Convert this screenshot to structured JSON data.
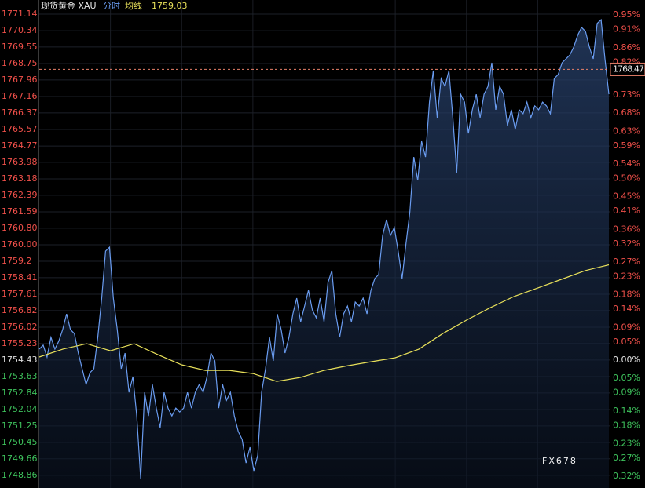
{
  "chart_data": {
    "type": "line",
    "title": "现货黄金 XAU",
    "avg_value": 1759.03,
    "last_price": 1768.47,
    "watermark": "FX678",
    "ylim": [
      1748.44,
      1771.48
    ],
    "y2lim": [
      -0.3414,
      0.9718
    ],
    "grid": true,
    "yticks": [
      1771.14,
      1770.34,
      1769.55,
      1768.75,
      1767.96,
      1767.16,
      1766.37,
      1765.57,
      1764.77,
      1763.98,
      1763.18,
      1762.39,
      1761.59,
      {
        "value": 1760.8,
        "label": "1760.80"
      },
      {
        "value": 1760,
        "label": "1760.00"
      },
      1759.2,
      1758.41,
      1757.61,
      1756.82,
      1756.02,
      1755.23,
      1754.43,
      1753.63,
      1752.84,
      1752.04,
      1751.25,
      1750.45,
      1749.66,
      1748.86
    ],
    "y2ticks": [
      {
        "value": 0.95,
        "label": "0.95%"
      },
      {
        "value": 0.91,
        "label": "0.91%"
      },
      {
        "value": 0.86,
        "label": "0.86%"
      },
      {
        "value": 0.82,
        "label": "0.82%"
      },
      {
        "value": 0.73,
        "label": "0.73%"
      },
      {
        "value": 0.68,
        "label": "0.68%"
      },
      {
        "value": 0.63,
        "label": "0.63%"
      },
      {
        "value": 0.59,
        "label": "0.59%"
      },
      {
        "value": 0.54,
        "label": "0.54%"
      },
      {
        "value": 0.5,
        "label": "0.50%"
      },
      {
        "value": 0.45,
        "label": "0.45%"
      },
      {
        "value": 0.41,
        "label": "0.41%"
      },
      {
        "value": 0.36,
        "label": "0.36%"
      },
      {
        "value": 0.32,
        "label": "0.32%"
      },
      {
        "value": 0.27,
        "label": "0.27%"
      },
      {
        "value": 0.23,
        "label": "0.23%"
      },
      {
        "value": 0.18,
        "label": "0.18%"
      },
      {
        "value": 0.14,
        "label": "0.14%"
      },
      {
        "value": 0.09,
        "label": "0.09%"
      },
      {
        "value": 0.05,
        "label": "0.05%"
      },
      {
        "value": 0,
        "label": "0.00%"
      },
      {
        "value": -0.05,
        "label": "0.05%"
      },
      {
        "value": -0.09,
        "label": "0.09%"
      },
      {
        "value": -0.14,
        "label": "0.14%"
      },
      {
        "value": -0.18,
        "label": "0.18%"
      },
      {
        "value": -0.23,
        "label": "0.23%"
      },
      {
        "value": -0.27,
        "label": "0.27%"
      },
      {
        "value": -0.32,
        "label": "0.32%"
      }
    ],
    "series": [
      {
        "name": "分时",
        "color": "#6a9cf0",
        "values": [
          1754.96,
          1755.15,
          1754.58,
          1755.53,
          1754.96,
          1755.34,
          1755.9,
          1756.66,
          1755.9,
          1755.71,
          1754.77,
          1754.01,
          1753.25,
          1753.82,
          1754.01,
          1755.53,
          1757.42,
          1759.69,
          1759.88,
          1757.42,
          1755.9,
          1754.01,
          1754.77,
          1752.87,
          1753.63,
          1751.73,
          1748.7,
          1752.87,
          1751.73,
          1753.25,
          1752.11,
          1751.17,
          1752.87,
          1752.11,
          1751.73,
          1752.11,
          1751.92,
          1752.11,
          1752.87,
          1752.11,
          1752.87,
          1753.25,
          1752.87,
          1753.63,
          1754.77,
          1754.39,
          1752.11,
          1753.25,
          1752.49,
          1752.87,
          1751.73,
          1750.98,
          1750.6,
          1749.46,
          1750.22,
          1749.08,
          1749.84,
          1752.87,
          1754.01,
          1755.53,
          1754.39,
          1756.66,
          1755.9,
          1754.77,
          1755.53,
          1756.66,
          1757.42,
          1756.28,
          1757.04,
          1757.8,
          1756.85,
          1756.47,
          1757.42,
          1756.28,
          1758.18,
          1758.75,
          1756.66,
          1755.53,
          1756.66,
          1757.04,
          1756.28,
          1757.23,
          1757.04,
          1757.42,
          1756.66,
          1757.8,
          1758.37,
          1758.56,
          1760.45,
          1761.21,
          1760.45,
          1760.83,
          1759.69,
          1758.37,
          1760.07,
          1761.59,
          1764.24,
          1763.11,
          1765.0,
          1764.24,
          1766.89,
          1768.41,
          1766.14,
          1768.03,
          1767.65,
          1768.41,
          1766.14,
          1763.48,
          1767.27,
          1766.89,
          1765.38,
          1766.52,
          1767.27,
          1766.14,
          1767.27,
          1767.65,
          1768.79,
          1766.52,
          1767.65,
          1767.27,
          1765.76,
          1766.52,
          1765.57,
          1766.52,
          1766.33,
          1766.89,
          1766.14,
          1766.71,
          1766.52,
          1766.89,
          1766.71,
          1766.33,
          1768.03,
          1768.22,
          1768.79,
          1768.98,
          1769.17,
          1769.55,
          1770.12,
          1770.5,
          1770.31,
          1769.55,
          1768.98,
          1770.69,
          1770.87,
          1768.98,
          1767.27
        ]
      },
      {
        "name": "均线",
        "color": "#e8e05a",
        "values": [
          1754.58,
          1754.96,
          1755.22,
          1754.88,
          1755.22,
          1754.69,
          1754.2,
          1753.93,
          1753.93,
          1753.78,
          1753.4,
          1753.59,
          1753.93,
          1754.16,
          1754.35,
          1754.54,
          1754.96,
          1755.71,
          1756.36,
          1756.96,
          1757.5,
          1757.91,
          1758.33,
          1758.75,
          1759.03
        ]
      }
    ]
  }
}
